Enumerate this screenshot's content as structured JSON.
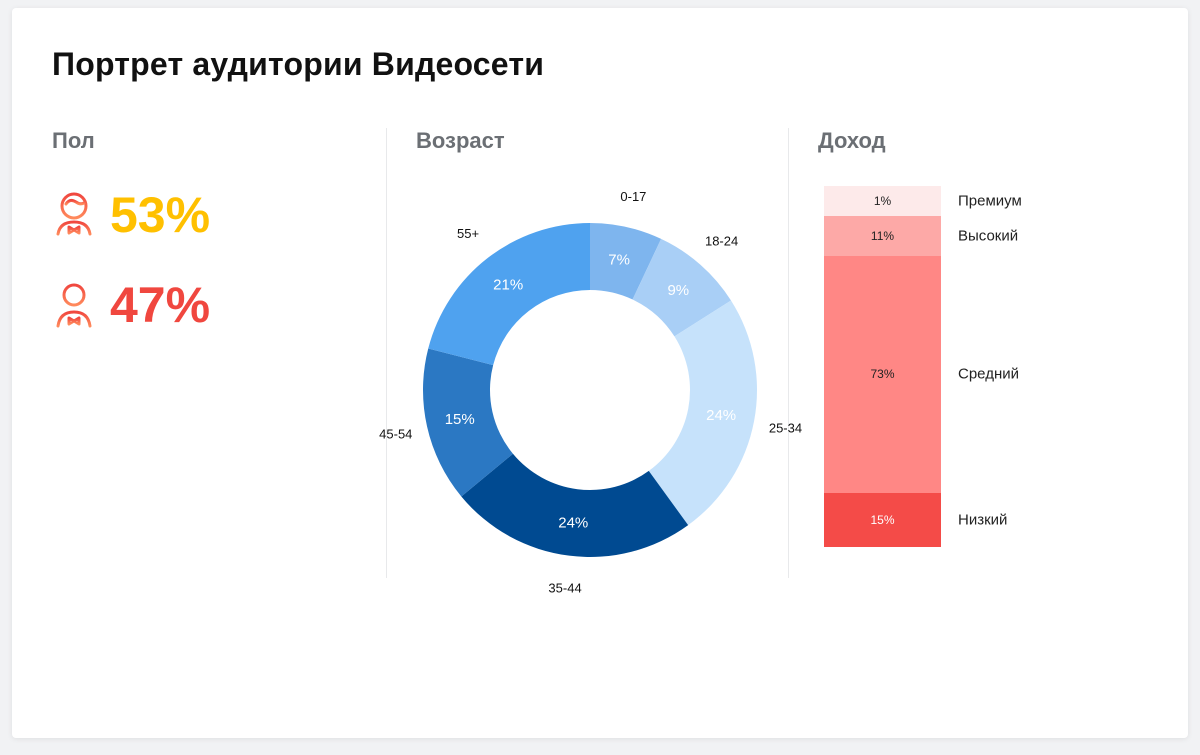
{
  "title": "Портрет аудитории Видеосети",
  "sections": {
    "gender": "Пол",
    "age": "Возраст",
    "income": "Доход"
  },
  "gender": {
    "female": {
      "value": "53%",
      "icon": "female-user-icon",
      "color": "#ffc000"
    },
    "male": {
      "value": "47%",
      "icon": "male-user-icon",
      "color": "#f0473f"
    }
  },
  "chart_data": [
    {
      "type": "pie",
      "variant": "donut",
      "title": "Возраст",
      "categories": [
        "0-17",
        "18-24",
        "25-34",
        "35-44",
        "45-54",
        "55+"
      ],
      "values": [
        7,
        9,
        24,
        24,
        15,
        21
      ],
      "labels": [
        "7%",
        "9%",
        "24%",
        "24%",
        "15%",
        "21%"
      ],
      "colors": [
        "#7eb5ee",
        "#a9cff6",
        "#c6e2fb",
        "#004a91",
        "#2b78c3",
        "#4fa2ef"
      ]
    },
    {
      "type": "bar",
      "variant": "stacked-100",
      "title": "Доход",
      "categories": [
        "Премиум",
        "Высокий",
        "Средний",
        "Низкий"
      ],
      "values": [
        1,
        11,
        73,
        15
      ],
      "labels": [
        "1%",
        "11%",
        "73%",
        "15%"
      ],
      "colors": [
        "#fdeaea",
        "#fda9a7",
        "#ff8785",
        "#f44b48"
      ],
      "text_colors": [
        "#222222",
        "#222222",
        "#222222",
        "#ffffff"
      ]
    }
  ]
}
